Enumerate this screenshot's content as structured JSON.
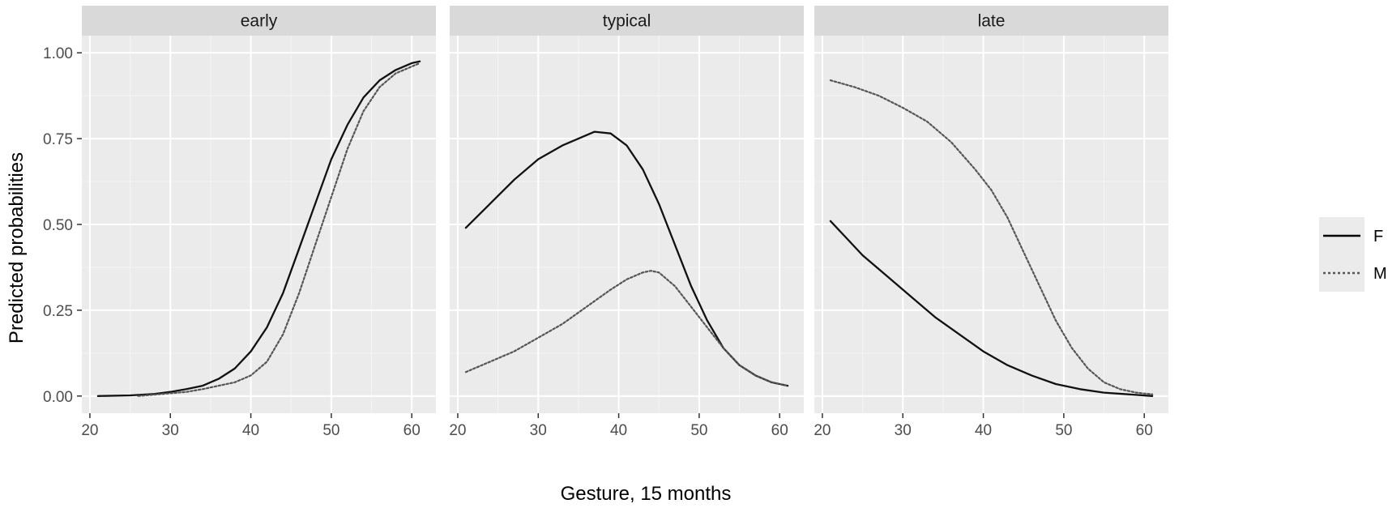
{
  "chart_data": {
    "type": "line",
    "xlabel": "Gesture, 15 months",
    "ylabel": "Predicted probabilities",
    "xlim": [
      19,
      63
    ],
    "ylim": [
      -0.05,
      1.05
    ],
    "x_ticks": [
      20,
      30,
      40,
      50,
      60
    ],
    "x_tick_labels": [
      "20",
      "30",
      "40",
      "50",
      "60"
    ],
    "y_ticks": [
      0,
      0.25,
      0.5,
      0.75,
      1.0
    ],
    "y_tick_labels": [
      "0.00",
      "0.25",
      "0.50",
      "0.75",
      "1.00"
    ],
    "grid": true,
    "legend": {
      "placement": "right",
      "entries": [
        {
          "label": "F",
          "linetype": "solid"
        },
        {
          "label": "M",
          "linetype": "dotted"
        }
      ]
    },
    "facets": [
      {
        "label": "early",
        "series": [
          {
            "name": "F",
            "linetype": "solid",
            "x": [
              21,
              25,
              28,
              30,
              32,
              34,
              36,
              38,
              40,
              42,
              44,
              46,
              48,
              50,
              52,
              54,
              56,
              58,
              60,
              61
            ],
            "y": [
              0.0,
              0.002,
              0.006,
              0.012,
              0.02,
              0.03,
              0.05,
              0.08,
              0.13,
              0.2,
              0.3,
              0.43,
              0.56,
              0.69,
              0.79,
              0.87,
              0.92,
              0.95,
              0.97,
              0.975
            ]
          },
          {
            "name": "M",
            "linetype": "dotted",
            "x": [
              26,
              28,
              30,
              32,
              34,
              36,
              38,
              40,
              42,
              44,
              46,
              48,
              50,
              52,
              54,
              56,
              58,
              60,
              61
            ],
            "y": [
              0.0,
              0.004,
              0.008,
              0.012,
              0.02,
              0.03,
              0.04,
              0.06,
              0.1,
              0.18,
              0.3,
              0.44,
              0.58,
              0.72,
              0.83,
              0.9,
              0.94,
              0.96,
              0.97
            ]
          }
        ]
      },
      {
        "label": "typical",
        "series": [
          {
            "name": "F",
            "linetype": "solid",
            "x": [
              21,
              24,
              27,
              30,
              33,
              35,
              37,
              39,
              41,
              43,
              45,
              47,
              49,
              51,
              53,
              55,
              57,
              59,
              61
            ],
            "y": [
              0.49,
              0.56,
              0.63,
              0.69,
              0.73,
              0.75,
              0.77,
              0.765,
              0.73,
              0.66,
              0.56,
              0.44,
              0.32,
              0.22,
              0.14,
              0.09,
              0.06,
              0.04,
              0.03
            ]
          },
          {
            "name": "M",
            "linetype": "dotted",
            "x": [
              21,
              24,
              27,
              30,
              33,
              36,
              39,
              41,
              43,
              44,
              45,
              47,
              49,
              51,
              53,
              55,
              57,
              59,
              61
            ],
            "y": [
              0.07,
              0.1,
              0.13,
              0.17,
              0.21,
              0.26,
              0.31,
              0.34,
              0.36,
              0.365,
              0.36,
              0.32,
              0.26,
              0.2,
              0.14,
              0.09,
              0.06,
              0.04,
              0.03
            ]
          }
        ]
      },
      {
        "label": "late",
        "series": [
          {
            "name": "F",
            "linetype": "solid",
            "x": [
              21,
              23,
              25,
              28,
              31,
              34,
              37,
              40,
              43,
              46,
              49,
              52,
              55,
              58,
              61
            ],
            "y": [
              0.51,
              0.46,
              0.41,
              0.35,
              0.29,
              0.23,
              0.18,
              0.13,
              0.09,
              0.06,
              0.035,
              0.02,
              0.01,
              0.005,
              0.0
            ]
          },
          {
            "name": "M",
            "linetype": "dotted",
            "x": [
              21,
              24,
              27,
              30,
              33,
              36,
              39,
              41,
              43,
              45,
              47,
              49,
              51,
              53,
              55,
              57,
              59,
              61
            ],
            "y": [
              0.92,
              0.9,
              0.875,
              0.84,
              0.8,
              0.74,
              0.66,
              0.6,
              0.52,
              0.42,
              0.32,
              0.22,
              0.14,
              0.08,
              0.04,
              0.02,
              0.01,
              0.005
            ]
          }
        ]
      }
    ]
  }
}
